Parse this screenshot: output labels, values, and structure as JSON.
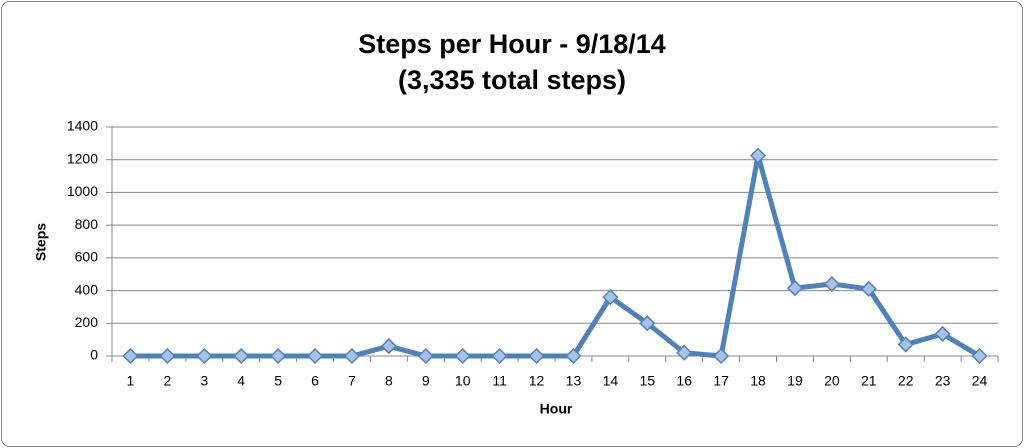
{
  "chart_data": {
    "type": "line",
    "title": "Steps per Hour - 9/18/14",
    "subtitle": "(3,335 total steps)",
    "x_label": "Hour",
    "y_label": "Steps",
    "categories": [
      1,
      2,
      3,
      4,
      5,
      6,
      7,
      8,
      9,
      10,
      11,
      12,
      13,
      14,
      15,
      16,
      17,
      18,
      19,
      20,
      21,
      22,
      23,
      24
    ],
    "series": [
      {
        "name": "Steps",
        "color": "#4f81bd",
        "values": [
          0,
          0,
          0,
          0,
          0,
          0,
          0,
          60,
          0,
          0,
          0,
          0,
          0,
          360,
          200,
          20,
          0,
          1225,
          415,
          440,
          410,
          70,
          135,
          0
        ]
      }
    ],
    "ylim": [
      0,
      1400
    ],
    "yticks": [
      0,
      200,
      400,
      600,
      800,
      1000,
      1200,
      1400
    ],
    "grid": true
  }
}
